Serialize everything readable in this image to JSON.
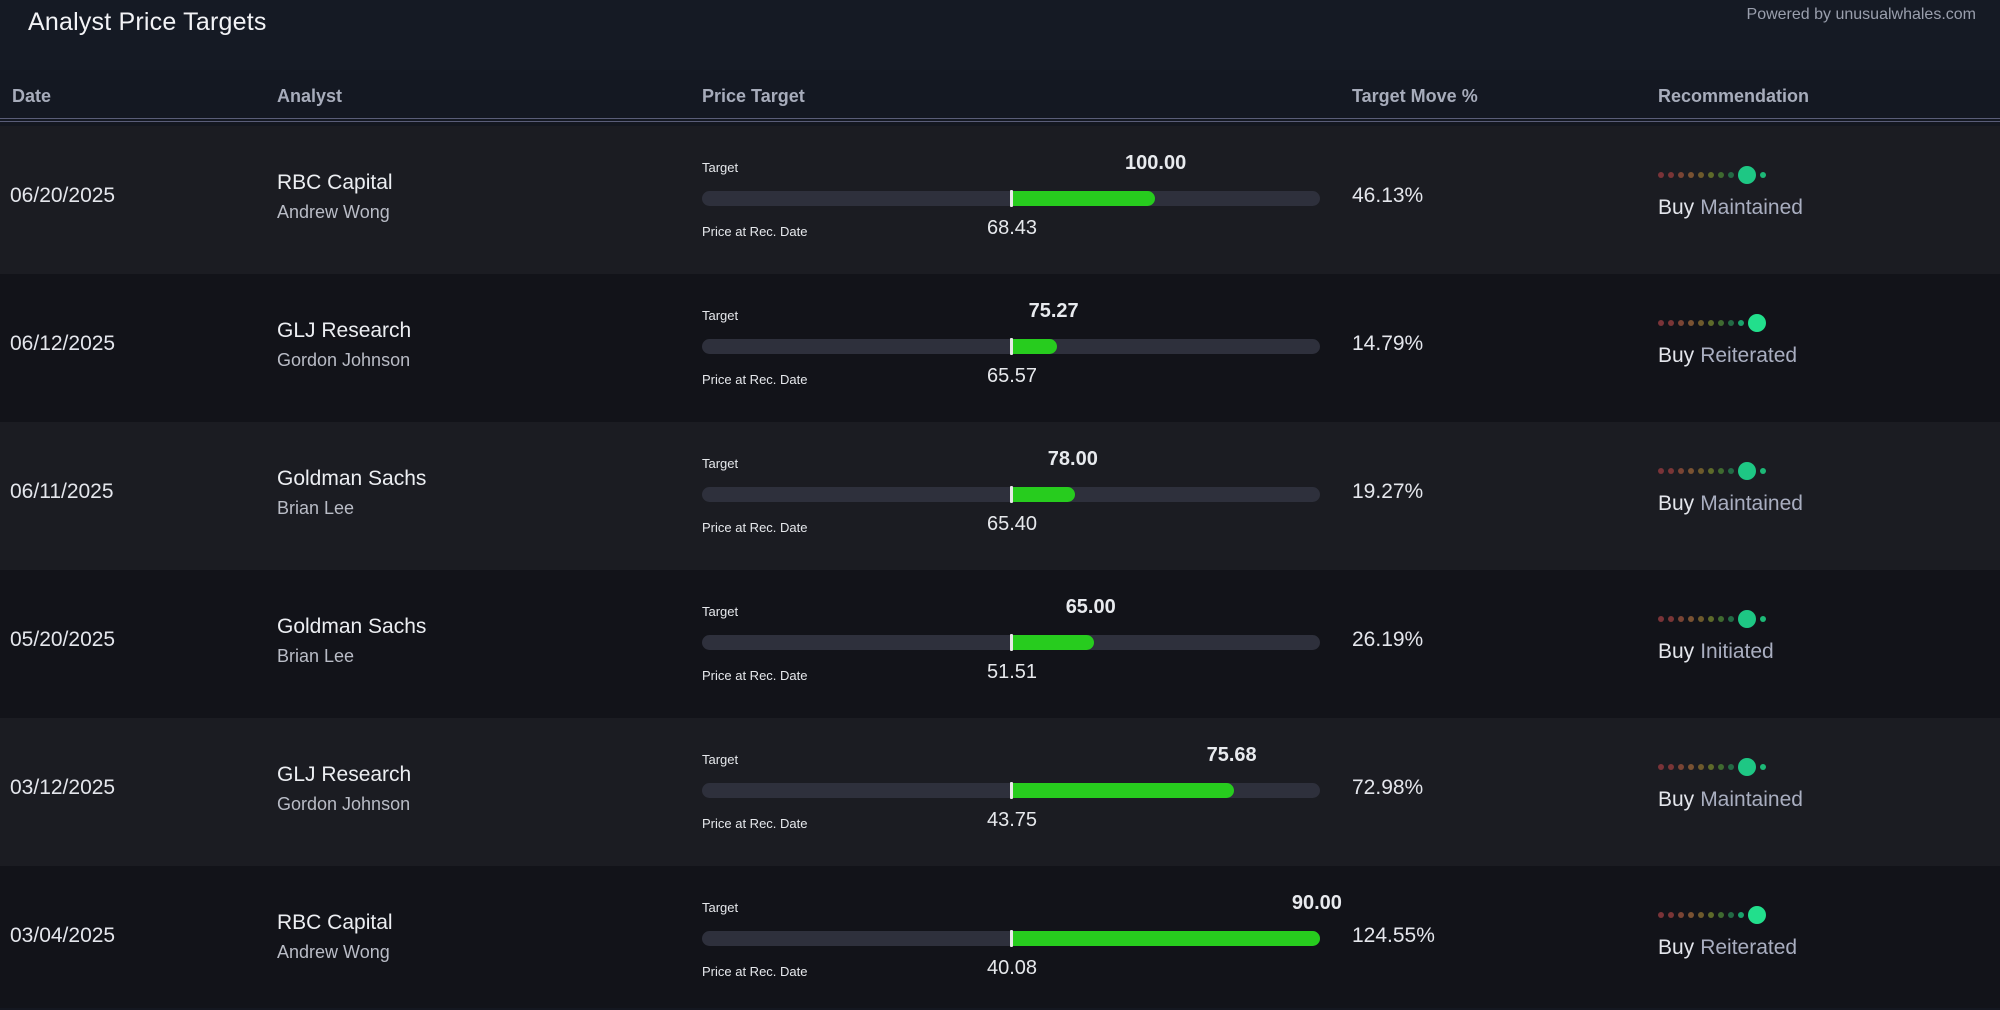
{
  "header": {
    "title": "Analyst Price Targets",
    "powered_by": "Powered by unusualwhales.com"
  },
  "columns": {
    "date": "Date",
    "analyst": "Analyst",
    "price_target": "Price Target",
    "target_move": "Target Move %",
    "recommendation": "Recommendation"
  },
  "labels": {
    "target": "Target",
    "price_at_rec": "Price at Rec. Date"
  },
  "colors": {
    "fill": "#27cc1e",
    "dot_scale": [
      "#7a3338",
      "#7a3536",
      "#7a4434",
      "#7a5232",
      "#6e5a2c",
      "#5e6a2a",
      "#3f6a30",
      "#236a45",
      "#1aa36c",
      "#1db877"
    ],
    "dot_active": "#1ec784",
    "dot_active_bright": "#22df8c"
  },
  "rows": [
    {
      "date": "06/20/2025",
      "firm": "RBC Capital",
      "analyst": "Andrew Wong",
      "target": "100.00",
      "price_at_rec": "68.43",
      "move": "46.13%",
      "action": "Buy",
      "status": "Maintained",
      "fill_fraction": 0.233,
      "target_fraction": 0.734,
      "rating_index": 8
    },
    {
      "date": "06/12/2025",
      "firm": "GLJ Research",
      "analyst": "Gordon Johnson",
      "target": "75.27",
      "price_at_rec": "65.57",
      "move": "14.79%",
      "action": "Buy",
      "status": "Reiterated",
      "fill_fraction": 0.074,
      "target_fraction": 0.569,
      "rating_index": 9
    },
    {
      "date": "06/11/2025",
      "firm": "Goldman Sachs",
      "analyst": "Brian Lee",
      "target": "78.00",
      "price_at_rec": "65.40",
      "move": "19.27%",
      "action": "Buy",
      "status": "Maintained",
      "fill_fraction": 0.104,
      "target_fraction": 0.6,
      "rating_index": 8
    },
    {
      "date": "05/20/2025",
      "firm": "Goldman Sachs",
      "analyst": "Brian Lee",
      "target": "65.00",
      "price_at_rec": "51.51",
      "move": "26.19%",
      "action": "Buy",
      "status": "Initiated",
      "fill_fraction": 0.134,
      "target_fraction": 0.629,
      "rating_index": 8
    },
    {
      "date": "03/12/2025",
      "firm": "GLJ Research",
      "analyst": "Gordon Johnson",
      "target": "75.68",
      "price_at_rec": "43.75",
      "move": "72.98%",
      "action": "Buy",
      "status": "Maintained",
      "fill_fraction": 0.361,
      "target_fraction": 0.857,
      "rating_index": 8
    },
    {
      "date": "03/04/2025",
      "firm": "RBC Capital",
      "analyst": "Andrew Wong",
      "target": "90.00",
      "price_at_rec": "40.08",
      "move": "124.55%",
      "action": "Buy",
      "status": "Reiterated",
      "fill_fraction": 0.5,
      "target_fraction": 0.995,
      "rating_index": 9
    }
  ]
}
